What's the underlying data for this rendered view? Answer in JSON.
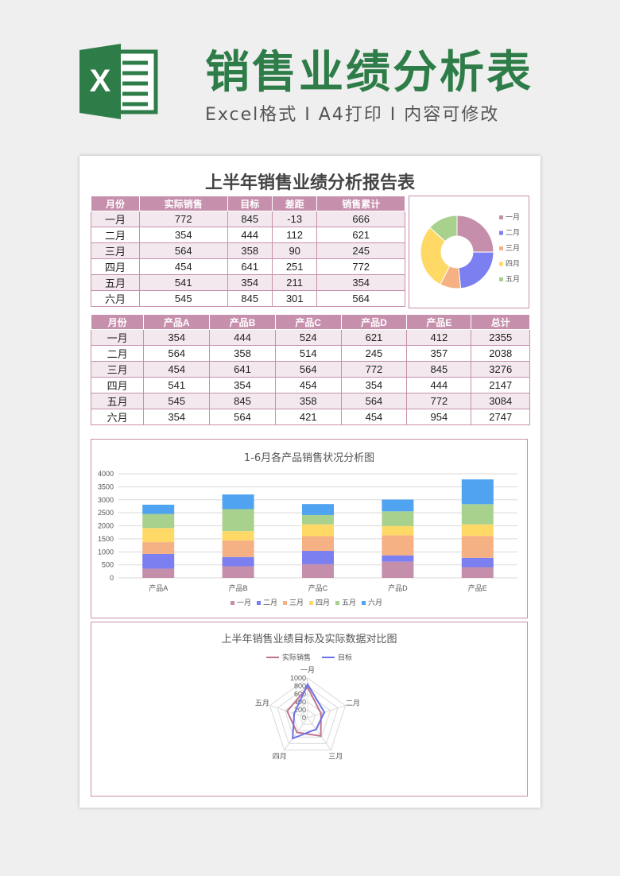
{
  "header": {
    "title": "销售业绩分析表",
    "subtitle": "Excel格式 I A4打印 I 内容可修改",
    "logo_letter": "X"
  },
  "report": {
    "title": "上半年销售业绩分析报告表"
  },
  "table1": {
    "headers": [
      "月份",
      "实际销售",
      "目标",
      "差距",
      "销售累计"
    ],
    "rows": [
      [
        "一月",
        "772",
        "845",
        "-13",
        "666"
      ],
      [
        "二月",
        "354",
        "444",
        "112",
        "621"
      ],
      [
        "三月",
        "564",
        "358",
        "90",
        "245"
      ],
      [
        "四月",
        "454",
        "641",
        "251",
        "772"
      ],
      [
        "五月",
        "541",
        "354",
        "211",
        "354"
      ],
      [
        "六月",
        "545",
        "845",
        "301",
        "564"
      ]
    ]
  },
  "table2": {
    "headers": [
      "月份",
      "产品A",
      "产品B",
      "产品C",
      "产品D",
      "产品E",
      "总计"
    ],
    "rows": [
      [
        "一月",
        "354",
        "444",
        "524",
        "621",
        "412",
        "2355"
      ],
      [
        "二月",
        "564",
        "358",
        "514",
        "245",
        "357",
        "2038"
      ],
      [
        "三月",
        "454",
        "641",
        "564",
        "772",
        "845",
        "3276"
      ],
      [
        "四月",
        "541",
        "354",
        "454",
        "354",
        "444",
        "2147"
      ],
      [
        "五月",
        "545",
        "845",
        "358",
        "564",
        "772",
        "3084"
      ],
      [
        "六月",
        "354",
        "564",
        "421",
        "454",
        "954",
        "2747"
      ]
    ]
  },
  "colors": {
    "一月": "#c58fac",
    "二月": "#7b7ff0",
    "三月": "#f5b183",
    "四月": "#ffd966",
    "五月": "#a9d18e",
    "六月": "#4fa3f0",
    "accent": "#c690ac",
    "brand": "#2e7d48"
  },
  "chart_data": [
    {
      "type": "pie",
      "subtype": "donut",
      "title": "",
      "categories": [
        "一月",
        "二月",
        "三月",
        "四月",
        "五月"
      ],
      "values": [
        666,
        621,
        245,
        772,
        354
      ],
      "legend": "right"
    },
    {
      "type": "bar",
      "subtype": "stacked",
      "title": "1-6月各产品销售状况分析图",
      "categories": [
        "产品A",
        "产品B",
        "产品C",
        "产品D",
        "产品E"
      ],
      "series": [
        {
          "name": "一月",
          "values": [
            354,
            444,
            524,
            621,
            412
          ]
        },
        {
          "name": "二月",
          "values": [
            564,
            358,
            514,
            245,
            357
          ]
        },
        {
          "name": "三月",
          "values": [
            454,
            641,
            564,
            772,
            845
          ]
        },
        {
          "name": "四月",
          "values": [
            541,
            354,
            454,
            354,
            444
          ]
        },
        {
          "name": "五月",
          "values": [
            545,
            845,
            358,
            564,
            772
          ]
        },
        {
          "name": "六月",
          "values": [
            354,
            564,
            421,
            454,
            954
          ]
        }
      ],
      "ylim": [
        0,
        4000
      ],
      "yticks": [
        "0",
        "500",
        "1000",
        "1500",
        "2000",
        "2500",
        "3000",
        "3500",
        "4000"
      ],
      "grid": true,
      "legend": "bottom"
    },
    {
      "type": "radar",
      "title": "上半年销售业绩目标及实际数据对比图",
      "categories": [
        "一月",
        "二月",
        "三月",
        "四月",
        "五月"
      ],
      "series": [
        {
          "name": "实际销售",
          "values": [
            772,
            354,
            564,
            454,
            541
          ]
        },
        {
          "name": "目标",
          "values": [
            845,
            444,
            358,
            641,
            354
          ]
        }
      ],
      "series_colors": [
        "#c0738f",
        "#6b74e6"
      ],
      "rlim": [
        0,
        1000
      ],
      "rticks": [
        "0",
        "200",
        "400",
        "600",
        "800",
        "1000"
      ],
      "legend": "top"
    }
  ]
}
